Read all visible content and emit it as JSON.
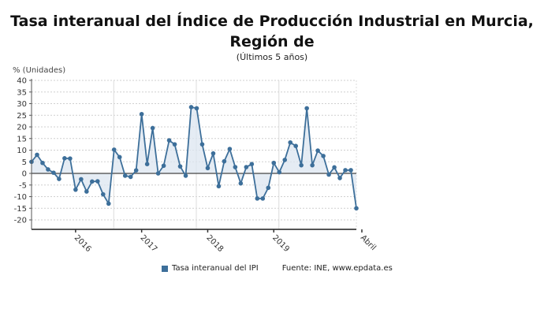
{
  "title_line1": "Tasa interanual del Índice de Producción Industrial en Murcia,",
  "title_line2": "Región de",
  "subtitle": "(Últimos 5 años)",
  "y_unit_label": "% (Unidades)",
  "legend": {
    "series_label": "Tasa interanual del IPI",
    "source": "Fuente: INE, www.epdata.es",
    "series_color": "#3d6f9a"
  },
  "chart_data": {
    "type": "area",
    "title": "Tasa interanual del Índice de Producción Industrial en Murcia, Región de",
    "subtitle": "(Últimos 5 años)",
    "xlabel": "",
    "ylabel": "% (Unidades)",
    "ylim": [
      -20,
      40
    ],
    "yticks": [
      40,
      35,
      30,
      25,
      20,
      15,
      10,
      5,
      0,
      -5,
      -10,
      -15,
      -20
    ],
    "x_tick_labels": [
      {
        "label": "2016",
        "index": 8
      },
      {
        "label": "2017",
        "index": 20
      },
      {
        "label": "2018",
        "index": 32
      },
      {
        "label": "2019",
        "index": 44
      },
      {
        "label": "Abril",
        "index": 60
      }
    ],
    "grid": true,
    "legend_position": "bottom",
    "series": [
      {
        "name": "Tasa interanual del IPI",
        "color": "#3d6f9a",
        "values": [
          5.0,
          8.0,
          4.5,
          1.7,
          0.3,
          -2.4,
          6.5,
          6.4,
          -7.0,
          -2.5,
          -7.8,
          -3.5,
          -3.4,
          -9.0,
          -13.0,
          10.2,
          7.0,
          -1.0,
          -1.5,
          1.3,
          25.5,
          4.0,
          19.5,
          0.0,
          3.3,
          14.2,
          12.5,
          3.0,
          -1.0,
          28.5,
          28.0,
          12.5,
          2.3,
          8.6,
          -5.5,
          5.2,
          10.5,
          2.7,
          -4.3,
          2.7,
          4.0,
          -10.8,
          -10.8,
          -6.2,
          4.5,
          0.5,
          5.8,
          13.3,
          11.8,
          3.5,
          28.0,
          3.5,
          9.8,
          7.5,
          -0.5,
          2.6,
          -2.0,
          1.4,
          1.4,
          -15.0
        ]
      }
    ]
  }
}
